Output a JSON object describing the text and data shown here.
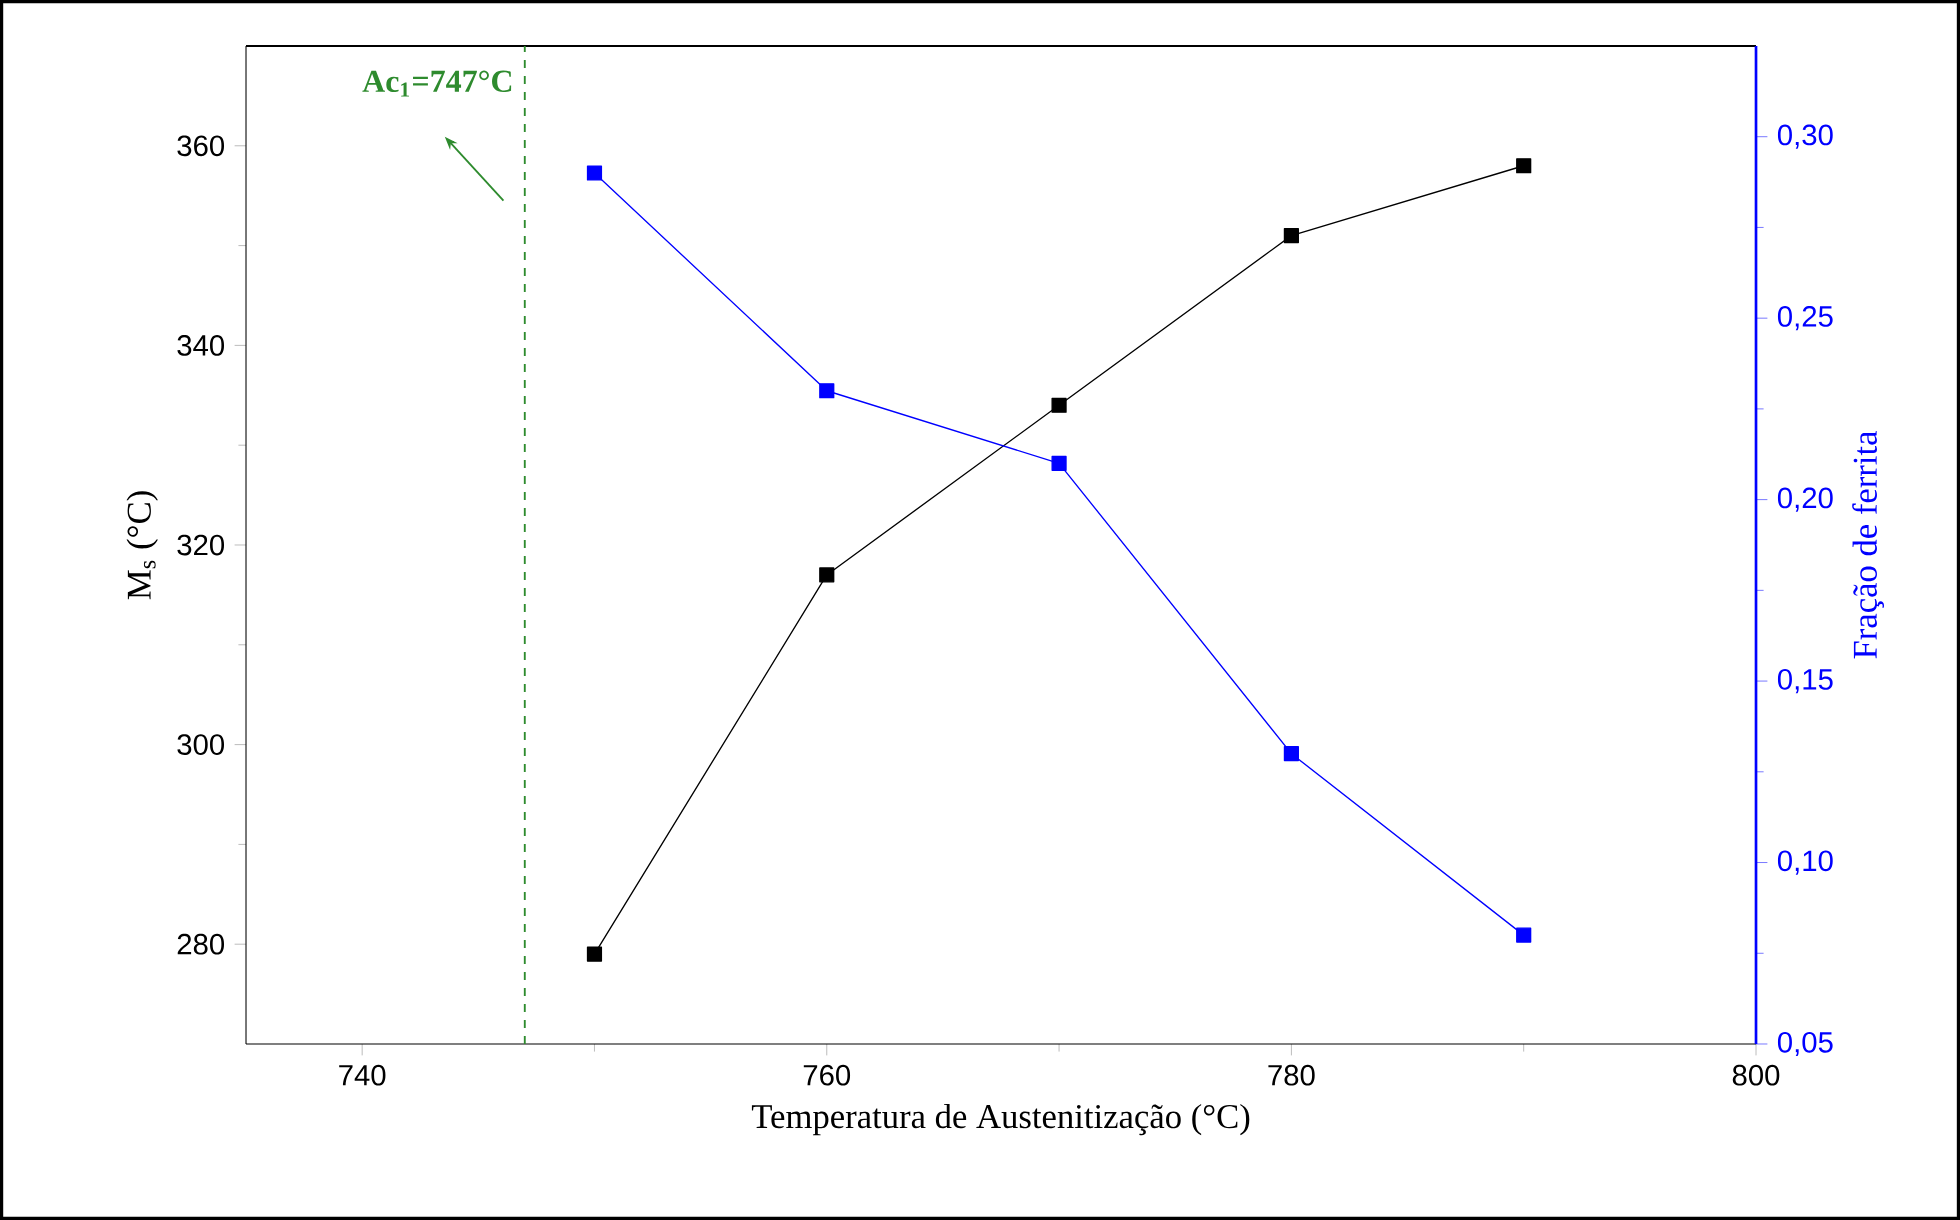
{
  "chart_data": {
    "type": "line",
    "xlabel": "Temperatura de Austenitização (°C)",
    "ylabel": "M$_{s}$ (°C)",
    "y2label": "Fração de ferrita",
    "x": [
      750,
      760,
      770,
      780,
      790
    ],
    "series": [
      {
        "color": "#000000",
        "values": [
          279,
          317,
          334,
          351,
          358
        ]
      },
      {
        "color": "#0000ff",
        "axis": "y2",
        "values": [
          0.29,
          0.23,
          0.21,
          0.13,
          0.08
        ]
      }
    ],
    "xlim": [
      735,
      800
    ],
    "xticks": [
      740,
      760,
      780,
      800
    ],
    "ylim": [
      270,
      370
    ],
    "yticks": [
      280,
      300,
      320,
      340,
      360
    ],
    "y2lim": [
      0.05,
      0.325
    ],
    "y2ticks": [
      {
        "value": 0.05,
        "label": "0,05"
      },
      {
        "value": 0.1,
        "label": "0,10"
      },
      {
        "value": 0.15,
        "label": "0,15"
      },
      {
        "value": 0.2,
        "label": "0,20"
      },
      {
        "value": 0.25,
        "label": "0,25"
      },
      {
        "value": 0.3,
        "label": "0,30"
      }
    ],
    "ref_lines": [
      {
        "axis": "x",
        "value": 747,
        "label": "Ac$_{1}$=747°C",
        "color": "#2e8b2e",
        "line_style": "dashed"
      }
    ],
    "marker": "square",
    "line_style": "solid"
  }
}
